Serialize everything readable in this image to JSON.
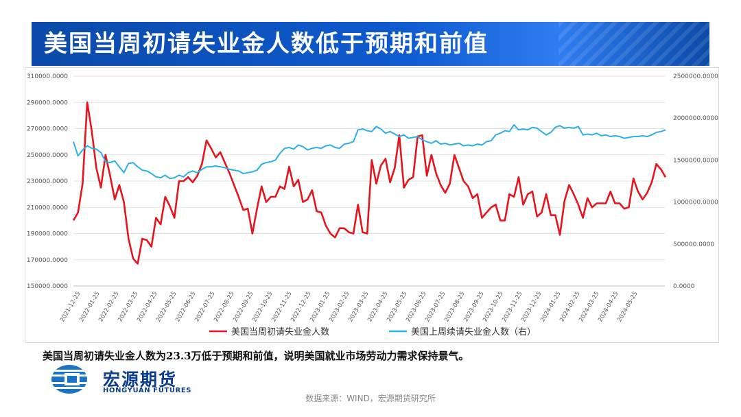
{
  "title": "美国当周初请失业金人数低于预期和前值",
  "caption": "美国当周初请失业金人数为23.3万低于预期和前值，说明美国就业市场劳动力需求保持景气。",
  "logo": {
    "cn": "宏源期货",
    "en": "HONGYUAN FUTURES"
  },
  "source": "数据来源：WIND，宏源期货研究所",
  "colors": {
    "red_series": "#e8141b",
    "blue_series": "#2ab0e8",
    "banner": "#0e5ad0",
    "logo": "#0b3d91"
  },
  "chart_data": {
    "type": "line",
    "x_tick_labels": [
      "2021-12-25",
      "2022-01-25",
      "2022-02-25",
      "2022-03-25",
      "2022-04-25",
      "2022-05-25",
      "2022-06-25",
      "2022-07-25",
      "2022-08-25",
      "2022-09-25",
      "2022-10-25",
      "2022-11-25",
      "2022-12-25",
      "2023-01-25",
      "2023-02-25",
      "2023-03-25",
      "2023-04-25",
      "2023-05-25",
      "2023-06-25",
      "2023-07-25",
      "2023-08-25",
      "2023-09-25",
      "2023-10-25",
      "2023-11-25",
      "2023-12-25",
      "2024-01-25",
      "2024-02-25",
      "2024-03-25",
      "2024-04-25",
      "2024-05-25"
    ],
    "y_left": {
      "min": 150000,
      "max": 310000,
      "ticks": [
        "150000.0000",
        "170000.0000",
        "190000.0000",
        "210000.0000",
        "230000.0000",
        "250000.0000",
        "270000.0000",
        "290000.0000",
        "310000.0000"
      ]
    },
    "y_right": {
      "min": 0,
      "max": 2500000,
      "ticks": [
        "0.0000",
        "500000.0000",
        "1000000.0000",
        "1500000.0000",
        "2000000.0000",
        "2500000.0000"
      ]
    },
    "legend_position": "bottom",
    "grid": "horizontal",
    "series": [
      {
        "name": "美国当周初请失业金人数",
        "axis": "left",
        "color": "#e8141b",
        "values": [
          200000,
          206000,
          228000,
          290000,
          268000,
          240000,
          225000,
          250000,
          234000,
          216000,
          227000,
          214000,
          186000,
          171000,
          167000,
          186000,
          185000,
          180000,
          202000,
          197000,
          218000,
          211000,
          202000,
          230000,
          230000,
          233000,
          229000,
          234000,
          243000,
          261000,
          255000,
          248000,
          252000,
          244000,
          236000,
          227000,
          218000,
          208000,
          209000,
          190000,
          209000,
          226000,
          214000,
          218000,
          218000,
          226000,
          224000,
          241000,
          226000,
          231000,
          214000,
          216000,
          223000,
          207000,
          206000,
          196000,
          190000,
          187000,
          194000,
          194000,
          191000,
          190000,
          212000,
          191000,
          190000,
          246000,
          228000,
          242000,
          247000,
          229000,
          240000,
          265000,
          225000,
          231000,
          233000,
          264000,
          265000,
          234000,
          250000,
          236000,
          227000,
          221000,
          228000,
          250000,
          240000,
          230000,
          226000,
          217000,
          220000,
          202000,
          206000,
          210000,
          212000,
          200000,
          200000,
          220000,
          218000,
          233000,
          212000,
          220000,
          222000,
          203000,
          206000,
          220000,
          204000,
          204000,
          189000,
          215000,
          227000,
          220000,
          212000,
          202000,
          217000,
          210000,
          213000,
          213000,
          213000,
          222000,
          213000,
          213000,
          209000,
          210000,
          232000,
          222000,
          216000,
          221000,
          229000,
          243000,
          239000,
          233000
        ]
      },
      {
        "name": "美国上周续请失业金人数（右）",
        "axis": "right",
        "color": "#2ab0e8",
        "values": [
          1720000,
          1550000,
          1620000,
          1670000,
          1640000,
          1630000,
          1590000,
          1480000,
          1470000,
          1490000,
          1420000,
          1350000,
          1460000,
          1470000,
          1420000,
          1380000,
          1370000,
          1340000,
          1300000,
          1290000,
          1320000,
          1280000,
          1290000,
          1320000,
          1300000,
          1350000,
          1370000,
          1350000,
          1390000,
          1420000,
          1420000,
          1430000,
          1420000,
          1410000,
          1390000,
          1380000,
          1370000,
          1340000,
          1350000,
          1360000,
          1380000,
          1450000,
          1470000,
          1480000,
          1500000,
          1580000,
          1640000,
          1650000,
          1630000,
          1680000,
          1660000,
          1620000,
          1640000,
          1650000,
          1640000,
          1670000,
          1680000,
          1650000,
          1640000,
          1690000,
          1700000,
          1720000,
          1860000,
          1870000,
          1850000,
          1840000,
          1900000,
          1870000,
          1820000,
          1840000,
          1810000,
          1780000,
          1800000,
          1760000,
          1770000,
          1780000,
          1740000,
          1720000,
          1700000,
          1730000,
          1690000,
          1700000,
          1680000,
          1690000,
          1700000,
          1670000,
          1680000,
          1670000,
          1690000,
          1680000,
          1720000,
          1730000,
          1800000,
          1820000,
          1850000,
          1840000,
          1920000,
          1860000,
          1870000,
          1860000,
          1890000,
          1880000,
          1840000,
          1800000,
          1830000,
          1890000,
          1910000,
          1880000,
          1890000,
          1880000,
          1900000,
          1800000,
          1810000,
          1800000,
          1820000,
          1790000,
          1800000,
          1780000,
          1790000,
          1780000,
          1760000,
          1770000,
          1780000,
          1780000,
          1790000,
          1780000,
          1800000,
          1830000,
          1840000,
          1860000
        ]
      }
    ]
  }
}
